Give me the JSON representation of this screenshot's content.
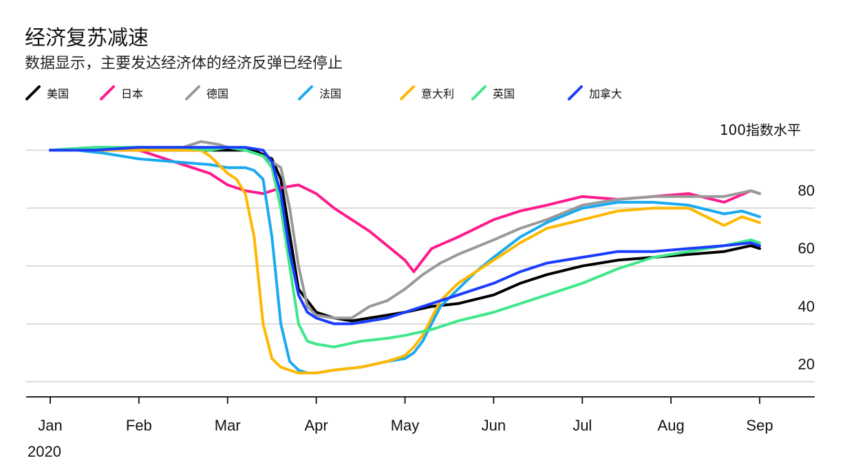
{
  "title": "经济复苏减速",
  "subtitle": "数据显示，主要发达经济体的经济反弹已经停止",
  "chart_data": {
    "type": "line",
    "title": "经济复苏减速",
    "subtitle": "数据显示，主要发达经济体的经济反弹已经停止",
    "ylabel": "100指数水平",
    "ylim": [
      15,
      102
    ],
    "yticks": [
      20,
      40,
      60,
      80
    ],
    "xlim": [
      0,
      8
    ],
    "month_ticks": [
      {
        "x": 0,
        "label": "Jan"
      },
      {
        "x": 1,
        "label": "Feb"
      },
      {
        "x": 2,
        "label": "Mar"
      },
      {
        "x": 3,
        "label": "Apr"
      },
      {
        "x": 4,
        "label": "May"
      },
      {
        "x": 5,
        "label": "Jun"
      },
      {
        "x": 6,
        "label": "Jul"
      },
      {
        "x": 7,
        "label": "Aug"
      },
      {
        "x": 8,
        "label": "Sep"
      }
    ],
    "year_label": "2020",
    "series": [
      {
        "name": "美国",
        "color": "#000000",
        "x": [
          0,
          0.5,
          1,
          1.5,
          2,
          2.3,
          2.5,
          2.6,
          2.8,
          3.0,
          3.2,
          3.4,
          3.6,
          3.8,
          4.0,
          4.3,
          4.6,
          5,
          5.3,
          5.6,
          6,
          6.4,
          6.8,
          7.2,
          7.6,
          7.9,
          8
        ],
        "y": [
          100,
          100,
          100,
          100,
          100,
          100,
          97,
          90,
          52,
          44,
          42,
          41,
          42,
          43,
          44,
          46,
          47,
          50,
          54,
          57,
          60,
          62,
          63,
          64,
          65,
          67,
          66
        ]
      },
      {
        "name": "日本",
        "color": "#ff1a8c",
        "x": [
          0,
          0.5,
          1,
          1.3,
          1.6,
          1.8,
          2,
          2.1,
          2.2,
          2.4,
          2.5,
          2.6,
          2.8,
          3.0,
          3.2,
          3.4,
          3.6,
          3.8,
          4.0,
          4.1,
          4.3,
          4.6,
          5,
          5.3,
          5.6,
          6,
          6.4,
          6.8,
          7.2,
          7.6,
          7.9,
          8
        ],
        "y": [
          100,
          100,
          100,
          97,
          94,
          92,
          88,
          87,
          86,
          85,
          86,
          87,
          88,
          85,
          80,
          76,
          72,
          67,
          62,
          58,
          66,
          70,
          76,
          79,
          81,
          84,
          83,
          84,
          85,
          82,
          86,
          85
        ]
      },
      {
        "name": "德国",
        "color": "#999999",
        "x": [
          0,
          0.5,
          1,
          1.5,
          1.7,
          1.9,
          2,
          2.2,
          2.4,
          2.6,
          2.7,
          2.8,
          2.9,
          3.0,
          3.2,
          3.4,
          3.6,
          3.8,
          4.0,
          4.2,
          4.4,
          4.6,
          5,
          5.3,
          5.6,
          6,
          6.4,
          6.8,
          7.2,
          7.6,
          7.9,
          8
        ],
        "y": [
          100,
          101,
          101,
          101,
          103,
          102,
          101,
          100,
          98,
          94,
          80,
          60,
          46,
          43,
          42,
          42,
          46,
          48,
          52,
          57,
          61,
          64,
          69,
          73,
          76,
          81,
          83,
          84,
          84,
          84,
          86,
          85
        ]
      },
      {
        "name": "法国",
        "color": "#1aaaf0",
        "x": [
          0,
          0.3,
          0.6,
          1,
          1.4,
          1.8,
          2,
          2.2,
          2.3,
          2.4,
          2.5,
          2.6,
          2.7,
          2.8,
          2.9,
          3.0,
          3.2,
          3.5,
          3.8,
          4.0,
          4.1,
          4.2,
          4.3,
          4.4,
          4.6,
          4.8,
          5,
          5.3,
          5.6,
          6,
          6.4,
          6.8,
          7.2,
          7.6,
          7.8,
          8
        ],
        "y": [
          100,
          100,
          99,
          97,
          96,
          95,
          94,
          94,
          93,
          90,
          70,
          40,
          27,
          24,
          23,
          23,
          24,
          25,
          27,
          28,
          30,
          34,
          40,
          46,
          52,
          58,
          63,
          70,
          75,
          80,
          82,
          82,
          81,
          78,
          79,
          77
        ]
      },
      {
        "name": "意大利",
        "color": "#ffb800",
        "x": [
          0,
          0.5,
          1,
          1.4,
          1.7,
          1.8,
          1.9,
          2.0,
          2.1,
          2.2,
          2.3,
          2.4,
          2.5,
          2.6,
          2.7,
          2.8,
          2.9,
          3.0,
          3.2,
          3.5,
          3.8,
          4.0,
          4.1,
          4.2,
          4.3,
          4.4,
          4.6,
          4.8,
          5,
          5.3,
          5.6,
          6,
          6.4,
          6.8,
          7.2,
          7.6,
          7.8,
          8
        ],
        "y": [
          100,
          100,
          100,
          100,
          100,
          98,
          95,
          92,
          90,
          85,
          70,
          40,
          28,
          25,
          24,
          23,
          23,
          23,
          24,
          25,
          27,
          29,
          32,
          36,
          42,
          48,
          54,
          58,
          62,
          68,
          73,
          76,
          79,
          80,
          80,
          74,
          77,
          75
        ]
      },
      {
        "name": "英国",
        "color": "#3ee88a",
        "x": [
          0,
          0.5,
          1,
          1.5,
          1.8,
          2,
          2.2,
          2.4,
          2.5,
          2.6,
          2.7,
          2.8,
          2.9,
          3.0,
          3.2,
          3.5,
          3.8,
          4.0,
          4.3,
          4.6,
          5,
          5.3,
          5.6,
          6,
          6.4,
          6.8,
          7.2,
          7.6,
          7.9,
          8
        ],
        "y": [
          100,
          101,
          101,
          101,
          100,
          101,
          100,
          98,
          94,
          80,
          60,
          40,
          34,
          33,
          32,
          34,
          35,
          36,
          38,
          41,
          44,
          47,
          50,
          54,
          59,
          63,
          65,
          67,
          69,
          68
        ]
      },
      {
        "name": "加拿大",
        "color": "#1a3cff",
        "x": [
          0,
          0.5,
          1,
          1.5,
          1.8,
          2,
          2.2,
          2.4,
          2.5,
          2.6,
          2.7,
          2.8,
          2.9,
          3.0,
          3.2,
          3.4,
          3.6,
          3.8,
          4.0,
          4.2,
          4.4,
          4.6,
          5,
          5.3,
          5.6,
          6,
          6.4,
          6.8,
          7.2,
          7.6,
          7.9,
          8
        ],
        "y": [
          100,
          100,
          101,
          101,
          101,
          101,
          101,
          100,
          96,
          85,
          65,
          50,
          44,
          42,
          40,
          40,
          41,
          42,
          44,
          46,
          48,
          50,
          54,
          58,
          61,
          63,
          65,
          65,
          66,
          67,
          68,
          67
        ]
      }
    ]
  }
}
